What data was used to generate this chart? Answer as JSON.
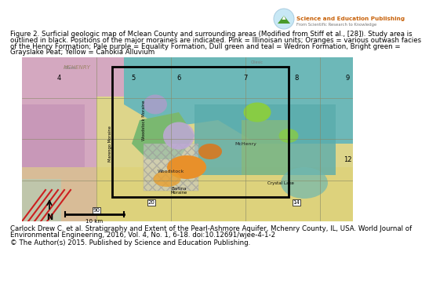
{
  "logo_text1": "Science and Education Publishing",
  "logo_text2": "From Scientific Research to Knowledge",
  "caption_line1": "Figure 2. Surficial geologic map of Mclean County and surrounding areas (Modified from Stiff et al., [28]). Study area is",
  "caption_line2": "outlined in black. Positions of the major moraines are indicated. Pink = Illinoisan units; Oranges = various outwash facies",
  "caption_line3": "of the Henry Formation; Pale purple = Equality Formation, Dull green and teal = Wedron Formation, Bright green =",
  "caption_line4": "Grayslake Peat; Yellow = Cahokia Alluvium",
  "citation_line1": "Carlock Drew C. et al. Stratigraphy and Extent of the Pearl-Ashmore Aquifer, Mchenry County, IL, USA. World Journal of",
  "citation_line2": "Environmental Engineering, 2016, Vol. 4, No. 1, 6-18. doi:10.12691/wjee-4-1-2",
  "copyright_line": "© The Author(s) 2015. Published by Science and Education Publishing.",
  "bg_color": "#ffffff",
  "text_fontsize": 6.2,
  "logo_title_color": "#c8620a",
  "logo_sub_color": "#777777",
  "logo_green": "#4a9a2a",
  "logo_blue_bg": "#c8e8f5"
}
